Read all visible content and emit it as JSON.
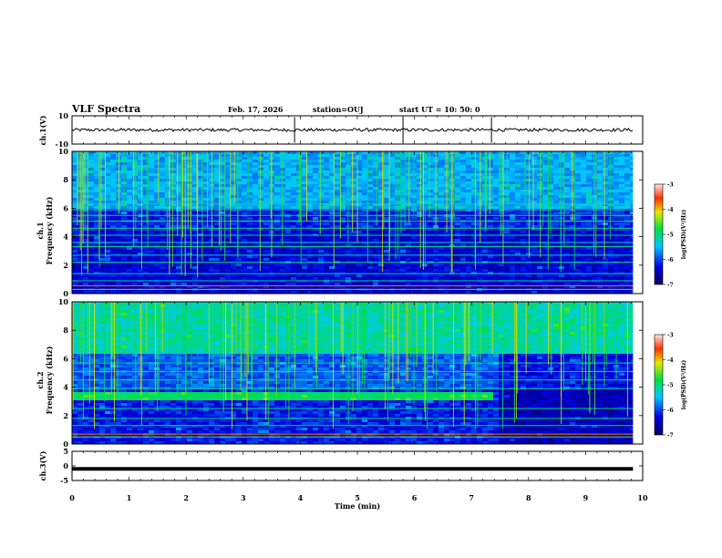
{
  "header": {
    "title": "VLF Spectra",
    "date": "Feb. 17, 2026",
    "station": "station=OUJ",
    "start": "start  UT  =   10: 50: 0"
  },
  "chart_data": [
    {
      "type": "line",
      "panel": "ch1-waveform",
      "ylabel": "ch.1(V)",
      "ylim": [
        -10,
        10
      ],
      "yticks": [
        "10",
        "-10"
      ],
      "baseline": 0,
      "spikes_min": [
        3.9,
        5.8,
        7.35
      ]
    },
    {
      "type": "heatmap",
      "panel": "ch1-spectrogram",
      "ylabel_line1": "ch.1",
      "ylabel_line2": "Frequency  (kHz)",
      "ylim": [
        0,
        10
      ],
      "yticks": [
        "0",
        "2",
        "4",
        "6",
        "8",
        "10"
      ],
      "colorbar": {
        "label": "log(PSD)(V²/Hz)",
        "range": [
          -7,
          -3
        ],
        "ticks": [
          "-3",
          "-4",
          "-5",
          "-6",
          "-7"
        ]
      }
    },
    {
      "type": "heatmap",
      "panel": "ch2-spectrogram",
      "ylabel_line1": "ch.2",
      "ylabel_line2": "Frequency  (kHz)",
      "ylim": [
        0,
        10
      ],
      "yticks": [
        "0",
        "2",
        "4",
        "6",
        "8",
        "10"
      ],
      "colorbar": {
        "label": "log(PSD)(V²/Hz)",
        "range": [
          -7,
          -3
        ],
        "ticks": [
          "-3",
          "-4",
          "-5",
          "-6",
          "-7"
        ]
      }
    },
    {
      "type": "line",
      "panel": "ch3-waveform",
      "ylabel": "ch.3(V)",
      "ylim": [
        -5,
        5
      ],
      "yticks": [
        "5",
        "0",
        "-5"
      ],
      "level": -1,
      "xlabel": "Time  (min)",
      "xlim": [
        0,
        10
      ],
      "xticks": [
        "0",
        "1",
        "2",
        "3",
        "4",
        "5",
        "6",
        "7",
        "8",
        "9",
        "10"
      ],
      "data_end_min": 9.83
    }
  ]
}
